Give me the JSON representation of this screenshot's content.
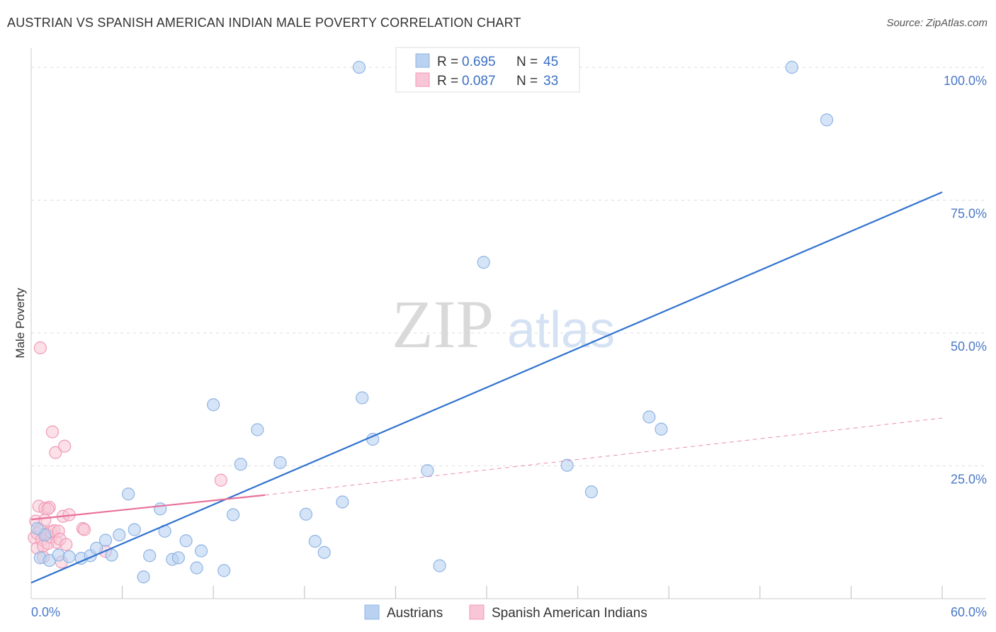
{
  "header": {
    "title": "AUSTRIAN VS SPANISH AMERICAN INDIAN MALE POVERTY CORRELATION CHART",
    "source": "Source: ZipAtlas.com"
  },
  "watermark": {
    "zip": "ZIP",
    "atlas": "atlas"
  },
  "colors": {
    "blue_fill": "#b9d2f1",
    "blue_stroke": "#8fb4e3",
    "blue_line": "#2f72cf",
    "pink_fill": "#f8c6d6",
    "pink_stroke": "#ef9ab6",
    "pink_line": "#e8709a",
    "tick_text": "#4a78c8",
    "grid": "#dddddd"
  },
  "legend": {
    "rows": [
      {
        "r_label": "R =",
        "r_value": "0.695",
        "n_label": "N =",
        "n_value": "45"
      },
      {
        "r_label": "R =",
        "r_value": "0.087",
        "n_label": "N =",
        "n_value": "33"
      }
    ]
  },
  "chart_data": {
    "type": "scatter",
    "title": "AUSTRIAN VS SPANISH AMERICAN INDIAN MALE POVERTY CORRELATION CHART",
    "xlabel": "",
    "ylabel": "Male Poverty",
    "xlim": [
      0,
      60
    ],
    "ylim": [
      0,
      102
    ],
    "x_tick_labels": [
      "0.0%",
      "60.0%"
    ],
    "y_ticks": [
      25,
      50,
      75,
      100
    ],
    "y_tick_labels": [
      "25.0%",
      "50.0%",
      "75.0%",
      "100.0%"
    ],
    "grid": "horizontal dashed",
    "legend_position": "top-center",
    "series": [
      {
        "name": "Austrians",
        "color": "#b9d2f1",
        "r": 0.695,
        "n": 45,
        "trend": {
          "x": [
            0,
            60
          ],
          "y": [
            3.0,
            76.5
          ],
          "style": "solid"
        },
        "points": [
          [
            0.6,
            7.7
          ],
          [
            0.9,
            12.0
          ],
          [
            1.2,
            7.2
          ],
          [
            1.8,
            8.2
          ],
          [
            2.5,
            7.9
          ],
          [
            3.3,
            7.6
          ],
          [
            3.9,
            8.1
          ],
          [
            4.3,
            9.5
          ],
          [
            4.9,
            11.0
          ],
          [
            5.3,
            8.2
          ],
          [
            5.8,
            12.0
          ],
          [
            6.4,
            19.7
          ],
          [
            6.8,
            13.0
          ],
          [
            7.4,
            4.1
          ],
          [
            7.8,
            8.1
          ],
          [
            8.5,
            16.9
          ],
          [
            8.8,
            12.7
          ],
          [
            9.3,
            7.4
          ],
          [
            9.7,
            7.7
          ],
          [
            10.2,
            10.9
          ],
          [
            10.9,
            5.8
          ],
          [
            11.2,
            9.0
          ],
          [
            12.0,
            36.5
          ],
          [
            12.7,
            5.3
          ],
          [
            13.3,
            15.8
          ],
          [
            13.8,
            25.3
          ],
          [
            14.9,
            31.8
          ],
          [
            16.4,
            25.6
          ],
          [
            18.1,
            15.9
          ],
          [
            18.7,
            10.8
          ],
          [
            19.3,
            8.7
          ],
          [
            20.5,
            18.2
          ],
          [
            21.8,
            37.8
          ],
          [
            22.5,
            30.0
          ],
          [
            26.1,
            24.1
          ],
          [
            26.9,
            6.2
          ],
          [
            29.8,
            63.3
          ],
          [
            35.3,
            25.1
          ],
          [
            36.9,
            20.1
          ],
          [
            40.7,
            34.2
          ],
          [
            41.5,
            31.9
          ],
          [
            21.6,
            100.0
          ],
          [
            50.1,
            100.0
          ],
          [
            52.4,
            90.1
          ],
          [
            0.4,
            13.2
          ]
        ]
      },
      {
        "name": "Spanish American Indians",
        "color": "#f8c6d6",
        "r": 0.087,
        "n": 33,
        "trend": {
          "x": [
            0,
            15.4,
            60
          ],
          "y": [
            14.9,
            19.5,
            34.0
          ],
          "style": "solid-then-dashed"
        },
        "points": [
          [
            0.2,
            11.5
          ],
          [
            0.3,
            14.6
          ],
          [
            0.4,
            12.3
          ],
          [
            0.4,
            9.5
          ],
          [
            0.5,
            17.4
          ],
          [
            0.6,
            13.0
          ],
          [
            0.7,
            11.1
          ],
          [
            0.8,
            9.9
          ],
          [
            0.9,
            17.0
          ],
          [
            0.9,
            14.8
          ],
          [
            1.0,
            12.2
          ],
          [
            1.1,
            10.4
          ],
          [
            1.2,
            17.2
          ],
          [
            1.3,
            11.6
          ],
          [
            1.3,
            12.6
          ],
          [
            1.4,
            31.4
          ],
          [
            1.5,
            12.8
          ],
          [
            1.6,
            27.5
          ],
          [
            1.7,
            10.6
          ],
          [
            1.8,
            12.7
          ],
          [
            1.9,
            11.2
          ],
          [
            2.0,
            6.9
          ],
          [
            2.1,
            15.5
          ],
          [
            2.2,
            28.7
          ],
          [
            2.3,
            10.2
          ],
          [
            2.5,
            15.8
          ],
          [
            3.4,
            13.2
          ],
          [
            3.5,
            13.0
          ],
          [
            4.9,
            8.9
          ],
          [
            12.5,
            22.3
          ],
          [
            0.6,
            47.2
          ],
          [
            0.8,
            7.8
          ],
          [
            1.1,
            16.9
          ]
        ]
      }
    ]
  }
}
